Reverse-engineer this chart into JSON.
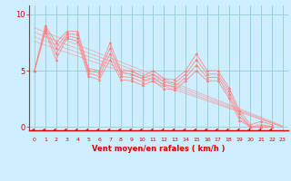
{
  "title": "",
  "xlabel": "Vent moyen/en rafales ( km/h )",
  "ylabel": "",
  "background_color": "#cceeff",
  "grid_color": "#99cccc",
  "line_color": "#ff8888",
  "marker_color": "#ff7777",
  "text_color": "#dd0000",
  "yticks": [
    0,
    5,
    10
  ],
  "ylim": [
    -0.3,
    10.8
  ],
  "xlim": [
    -0.5,
    23.5
  ],
  "xticks": [
    0,
    1,
    2,
    3,
    4,
    5,
    6,
    7,
    8,
    9,
    10,
    11,
    12,
    13,
    14,
    15,
    16,
    17,
    18,
    19,
    20,
    21,
    22,
    23
  ],
  "series": [
    [
      5.0,
      9.0,
      7.5,
      8.5,
      8.5,
      5.2,
      5.0,
      7.5,
      5.0,
      5.0,
      4.5,
      5.0,
      4.3,
      4.2,
      5.0,
      6.5,
      5.0,
      5.0,
      3.5,
      1.5,
      0.2,
      0.5,
      0.2
    ],
    [
      5.0,
      8.8,
      7.0,
      8.3,
      8.2,
      5.0,
      4.8,
      7.0,
      4.8,
      4.7,
      4.3,
      4.7,
      4.0,
      3.9,
      4.7,
      6.0,
      4.7,
      4.7,
      3.2,
      1.2,
      0.0,
      0.2,
      0.05
    ],
    [
      5.0,
      8.6,
      6.5,
      8.1,
      7.9,
      4.8,
      4.5,
      6.5,
      4.5,
      4.4,
      4.0,
      4.4,
      3.7,
      3.6,
      4.4,
      5.5,
      4.4,
      4.4,
      2.9,
      0.9,
      0.0,
      0.0,
      0.0
    ],
    [
      5.0,
      8.4,
      6.0,
      7.9,
      7.6,
      4.5,
      4.2,
      6.0,
      4.2,
      4.1,
      3.7,
      4.1,
      3.4,
      3.3,
      4.1,
      5.0,
      4.1,
      4.1,
      2.6,
      0.6,
      0.0,
      0.0,
      0.0
    ]
  ],
  "trend_lines": [
    {
      "x0": 0,
      "y0": 8.8,
      "x1": 23,
      "y1": 0.1
    },
    {
      "x0": 0,
      "y0": 8.4,
      "x1": 23,
      "y1": 0.05
    },
    {
      "x0": 0,
      "y0": 8.0,
      "x1": 23,
      "y1": 0.0
    },
    {
      "x0": 0,
      "y0": 7.6,
      "x1": 23,
      "y1": 0.0
    }
  ]
}
